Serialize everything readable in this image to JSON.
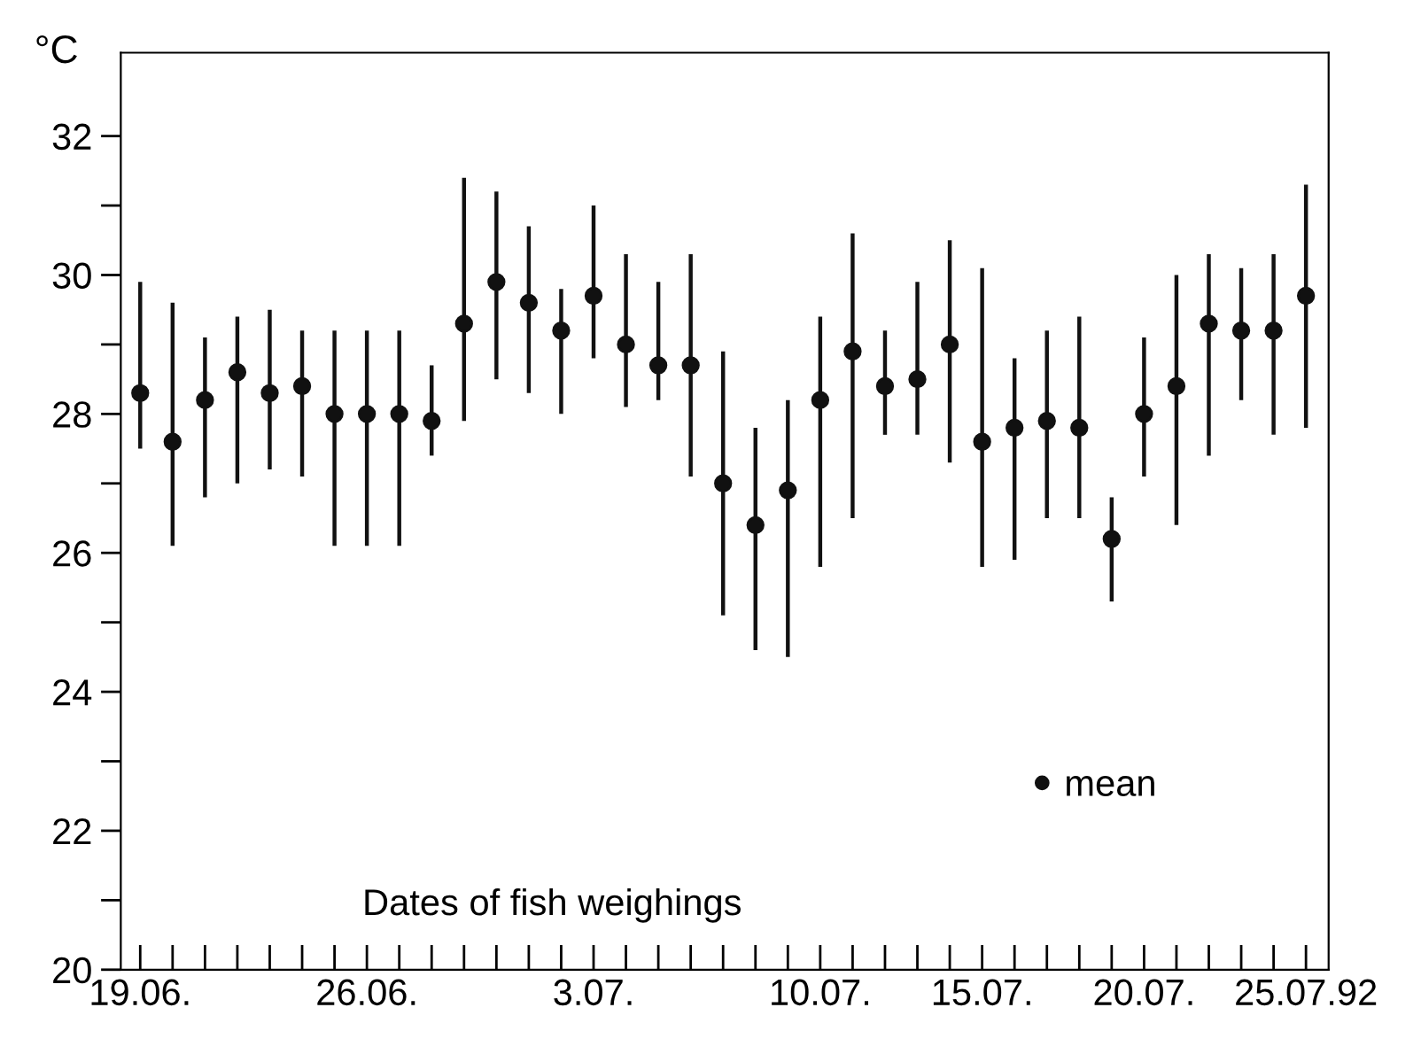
{
  "chart_data": {
    "type": "scatter",
    "ylabel": "°C",
    "xlabel": "Dates of fish weighings",
    "categories": [
      "19.06.",
      null,
      null,
      null,
      null,
      null,
      null,
      "26.06.",
      null,
      null,
      null,
      null,
      null,
      null,
      "3.07.",
      null,
      null,
      null,
      null,
      null,
      null,
      "10.07.",
      null,
      null,
      null,
      null,
      "15.07.",
      null,
      null,
      null,
      null,
      "20.07.",
      null,
      null,
      null,
      null,
      "25.07.92"
    ],
    "series": [
      {
        "name": "mean",
        "color": "#111111",
        "marker": "circle",
        "values": [
          28.3,
          27.6,
          28.2,
          28.6,
          28.3,
          28.4,
          28.0,
          28.0,
          28.0,
          27.9,
          29.3,
          29.9,
          29.6,
          29.2,
          29.7,
          29.0,
          28.7,
          28.7,
          27.0,
          26.4,
          26.9,
          28.2,
          28.9,
          28.4,
          28.5,
          29.0,
          27.6,
          27.8,
          27.9,
          27.8,
          26.2,
          28.0,
          28.4,
          29.3,
          29.2,
          29.2,
          29.7
        ],
        "errors": [
          [
            27.5,
            29.9
          ],
          [
            26.1,
            29.6
          ],
          [
            26.8,
            29.1
          ],
          [
            27.0,
            29.4
          ],
          [
            27.2,
            29.5
          ],
          [
            27.1,
            29.2
          ],
          [
            26.1,
            29.2
          ],
          [
            26.1,
            29.2
          ],
          [
            26.1,
            29.2
          ],
          [
            27.4,
            28.7
          ],
          [
            27.9,
            31.4
          ],
          [
            28.5,
            31.2
          ],
          [
            28.3,
            30.7
          ],
          [
            28.0,
            29.8
          ],
          [
            28.8,
            31.0
          ],
          [
            28.1,
            30.3
          ],
          [
            28.2,
            29.9
          ],
          [
            27.1,
            30.3
          ],
          [
            25.1,
            28.9
          ],
          [
            24.6,
            27.8
          ],
          [
            24.5,
            28.2
          ],
          [
            25.8,
            29.4
          ],
          [
            26.5,
            30.6
          ],
          [
            27.7,
            29.2
          ],
          [
            27.7,
            29.9
          ],
          [
            27.3,
            30.5
          ],
          [
            25.8,
            30.1
          ],
          [
            25.9,
            28.8
          ],
          [
            26.5,
            29.2
          ],
          [
            26.5,
            29.4
          ],
          [
            25.3,
            26.8
          ],
          [
            27.1,
            29.1
          ],
          [
            26.4,
            30.0
          ],
          [
            27.4,
            30.3
          ],
          [
            28.2,
            30.1
          ],
          [
            27.7,
            30.3
          ],
          [
            27.8,
            31.3
          ]
        ]
      }
    ],
    "ylim": [
      20,
      33.2
    ],
    "yticks": [
      20,
      {
        "value": 21,
        "label": null
      },
      22,
      {
        "value": 23,
        "label": null
      },
      24,
      {
        "value": 25,
        "label": null
      },
      26,
      {
        "value": 27,
        "label": null
      },
      28,
      {
        "value": 29,
        "label": null
      },
      30,
      {
        "value": 31,
        "label": null
      },
      32
    ],
    "legend": "bottom right",
    "grid": false
  }
}
